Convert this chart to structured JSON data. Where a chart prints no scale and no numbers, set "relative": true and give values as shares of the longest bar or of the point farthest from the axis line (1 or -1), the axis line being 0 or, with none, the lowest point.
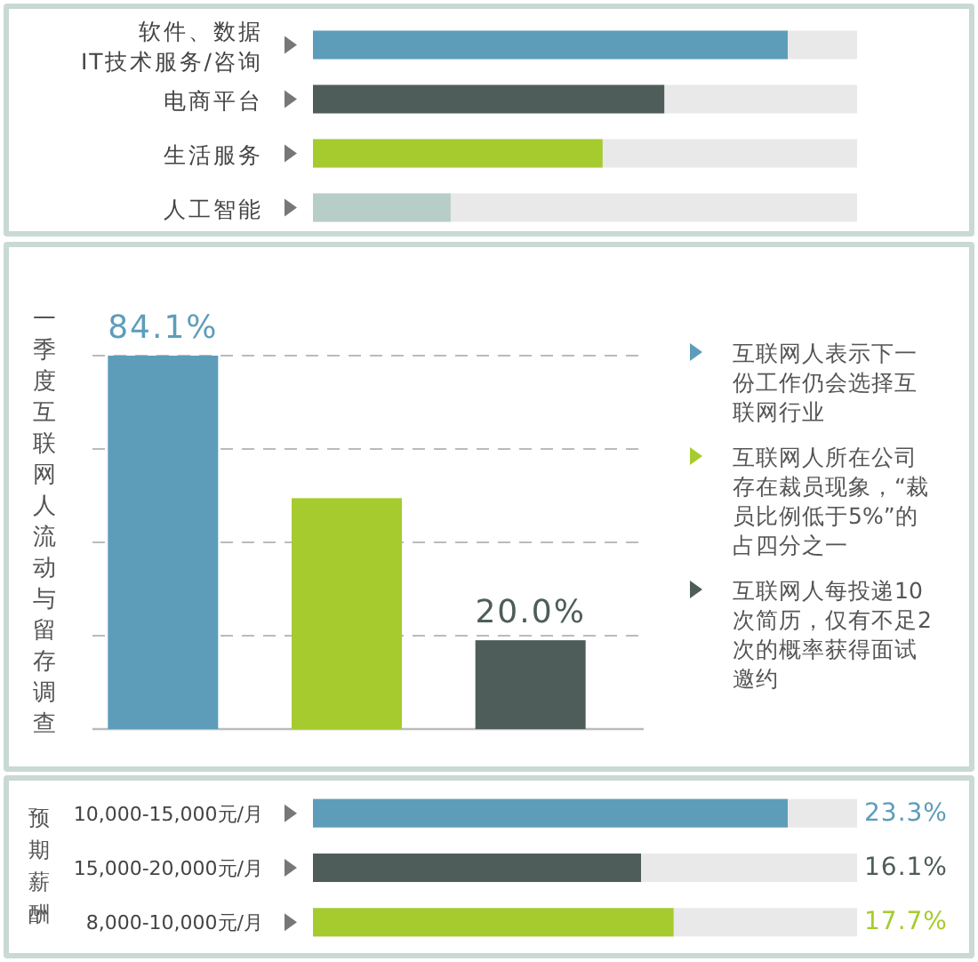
{
  "chart_data": [
    {
      "type": "bar",
      "orientation": "horizontal",
      "relative": true,
      "categories": [
        "软件、数据\nIT技术服务/咨询",
        "电商平台",
        "生活服务",
        "人工智能"
      ],
      "values": [
        1,
        0.74,
        0.61,
        0.29
      ],
      "colors": [
        "#5d9dba",
        "#4e5d59",
        "#a6cb2e",
        "#b7cdc8"
      ]
    },
    {
      "type": "bar",
      "ylabel": "一季度互联网人流动与留存调查",
      "categories": [
        null,
        null,
        null
      ],
      "values": [
        84.1,
        52,
        20.0
      ],
      "colors": [
        "#5d9dba",
        "#a6cb2e",
        "#4e5d59"
      ],
      "value_labels": [
        "84.1%",
        null,
        "20.0%"
      ],
      "grid": "y",
      "annotations": [
        "互联网人表示下一份工作仍会选择互联网行业",
        "互联网人所在公司存在裁员现象，“裁员比例低于5%”的占四分之一",
        "互联网人每投递10次简历，仅有不足2次的概率获得面试邀约"
      ]
    },
    {
      "type": "bar",
      "orientation": "horizontal",
      "ylabel": "预期薪酬",
      "categories": [
        "10,000-15,000元/月",
        "15,000-20,000元/月",
        "8,000-10,000元/月"
      ],
      "values": [
        23.3,
        16.1,
        17.7
      ],
      "colors": [
        "#5d9dba",
        "#4e5d59",
        "#a6cb2e"
      ],
      "value_labels": [
        "23.3%",
        "16.1%",
        "17.7%"
      ]
    }
  ]
}
